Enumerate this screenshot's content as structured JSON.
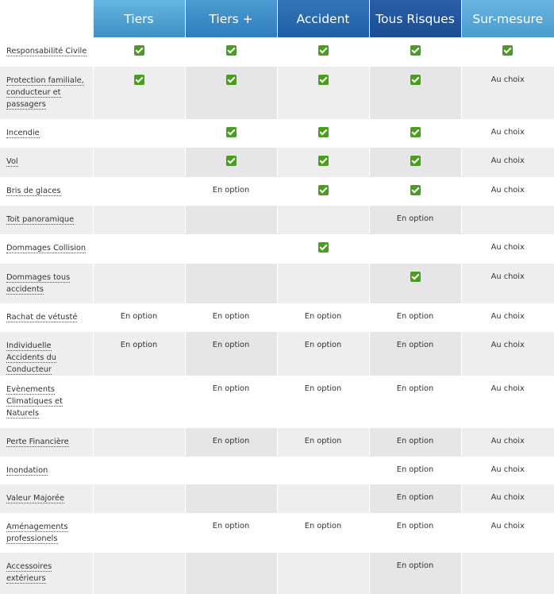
{
  "table": {
    "plans": [
      "Tiers",
      "Tiers +",
      "Accident",
      "Tous Risques",
      "Sur-mesure"
    ],
    "colors": {
      "check": "#4a9d1f",
      "header_light": "#5aa9da",
      "header_dark": "#2a5ea7"
    },
    "rows": [
      {
        "label": "Responsabilité Civile",
        "cells": [
          "check",
          "check",
          "check",
          "check",
          "check"
        ]
      },
      {
        "label": "Protection familiale, conducteur et passagers",
        "cells": [
          "check",
          "check",
          "check",
          "check",
          "Au choix"
        ]
      },
      {
        "label": "Incendie",
        "cells": [
          "",
          "check",
          "check",
          "check",
          "Au choix"
        ]
      },
      {
        "label": "Vol",
        "cells": [
          "",
          "check",
          "check",
          "check",
          "Au choix"
        ]
      },
      {
        "label": "Bris de glaces",
        "cells": [
          "",
          "En option",
          "check",
          "check",
          "Au choix"
        ]
      },
      {
        "label": "Toit panoramique",
        "cells": [
          "",
          "",
          "",
          "En option",
          ""
        ]
      },
      {
        "label": "Dommages Collision",
        "cells": [
          "",
          "",
          "check",
          "",
          "Au choix"
        ]
      },
      {
        "label": "Dommages tous accidents",
        "cells": [
          "",
          "",
          "",
          "check",
          "Au choix"
        ]
      },
      {
        "label": "Rachat de vétusté",
        "cells": [
          "En option",
          "En option",
          "En option",
          "En option",
          "Au choix"
        ]
      },
      {
        "label": "Individuelle Accidents du Conducteur",
        "cells": [
          "En option",
          "En option",
          "En option",
          "En option",
          "Au choix"
        ]
      },
      {
        "label": "Evènements Climatiques et Naturels",
        "cells": [
          "",
          "En option",
          "En option",
          "En option",
          "Au choix"
        ]
      },
      {
        "label": "Perte Financière",
        "cells": [
          "",
          "En option",
          "En option",
          "En option",
          "Au choix"
        ]
      },
      {
        "label": "Inondation",
        "cells": [
          "",
          "",
          "",
          "En option",
          "Au choix"
        ]
      },
      {
        "label": "Valeur Majorée",
        "cells": [
          "",
          "",
          "",
          "En option",
          "Au choix"
        ]
      },
      {
        "label": "Aménagements professionels",
        "cells": [
          "",
          "En option",
          "En option",
          "En option",
          "Au choix"
        ]
      },
      {
        "label": "Accessoires extérieurs",
        "cells": [
          "",
          "",
          "",
          "En option",
          ""
        ]
      }
    ]
  }
}
